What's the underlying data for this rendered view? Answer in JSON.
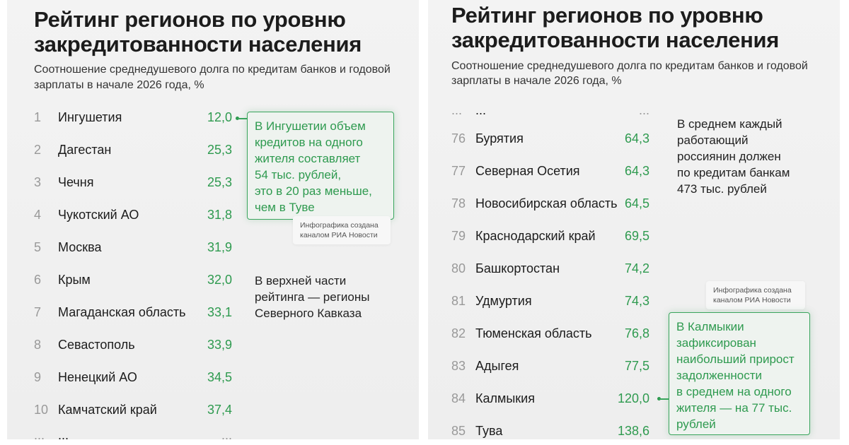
{
  "title_line1": "Рейтинг регионов по уровню",
  "title_line2": "закредитованности населения",
  "subtitle_line1": "Соотношение среднедушевого долга по кредитам банков и годовой",
  "subtitle_line2": "зарплаты в начале 2026 года, %",
  "credit_line1": "Инфографика создана",
  "credit_line2": "каналом РИА Новости",
  "ellipsis": "...",
  "accent_color": "#2e9a4f",
  "left": {
    "rows": [
      {
        "rank": "1",
        "region": "Ингушетия",
        "value": "12,0"
      },
      {
        "rank": "2",
        "region": "Дагестан",
        "value": "25,3"
      },
      {
        "rank": "3",
        "region": "Чечня",
        "value": "25,3"
      },
      {
        "rank": "4",
        "region": "Чукотский АО",
        "value": "31,8"
      },
      {
        "rank": "5",
        "region": "Москва",
        "value": "31,9"
      },
      {
        "rank": "6",
        "region": "Крым",
        "value": "32,0"
      },
      {
        "rank": "7",
        "region": "Магаданская область",
        "value": "33,1"
      },
      {
        "rank": "8",
        "region": "Севастополь",
        "value": "33,9"
      },
      {
        "rank": "9",
        "region": "Ненецкий АО",
        "value": "34,5"
      },
      {
        "rank": "10",
        "region": "Камчатский край",
        "value": "37,4"
      }
    ],
    "callout": [
      "В Ингушетии объем",
      "кредитов на одного",
      "жителя составляет",
      "54 тыс. рублей,",
      "это в 20 раз меньше,",
      "чем в Туве"
    ],
    "note": [
      "В верхней части",
      "рейтинга — регионы",
      "Северного Кавказа"
    ]
  },
  "right": {
    "rows": [
      {
        "rank": "76",
        "region": "Бурятия",
        "value": "64,3"
      },
      {
        "rank": "77",
        "region": "Северная Осетия",
        "value": "64,3"
      },
      {
        "rank": "78",
        "region": "Новосибирская область",
        "value": "64,5"
      },
      {
        "rank": "79",
        "region": "Краснодарский край",
        "value": "69,5"
      },
      {
        "rank": "80",
        "region": "Башкортостан",
        "value": "74,2"
      },
      {
        "rank": "81",
        "region": "Удмуртия",
        "value": "74,3"
      },
      {
        "rank": "82",
        "region": "Тюменская область",
        "value": "76,8"
      },
      {
        "rank": "83",
        "region": "Адыгея",
        "value": "77,5"
      },
      {
        "rank": "84",
        "region": "Калмыкия",
        "value": "120,0"
      },
      {
        "rank": "85",
        "region": "Тува",
        "value": "138,6"
      }
    ],
    "callout": [
      "В Калмыкии",
      "зафиксирован",
      "наибольший прирост",
      "задолженности",
      "в среднем на одного",
      "жителя — на 77 тыс.",
      "рублей"
    ],
    "note": [
      "В среднем каждый",
      "работающий",
      "россиянин должен",
      "по кредитам банкам",
      "473 тыс. рублей"
    ]
  }
}
